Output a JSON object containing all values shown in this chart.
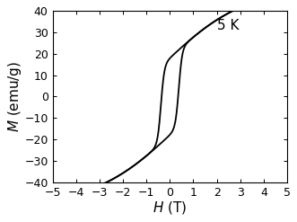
{
  "title": "5 K",
  "xlabel": "H (T)",
  "ylabel": "M (emu/g)",
  "xlim": [
    -5,
    5
  ],
  "ylim": [
    -40,
    40
  ],
  "xticks": [
    -5,
    -4,
    -3,
    -2,
    -1,
    0,
    1,
    2,
    3,
    4,
    5
  ],
  "yticks": [
    -40,
    -30,
    -20,
    -10,
    0,
    10,
    20,
    30,
    40
  ],
  "line_color": "#000000",
  "line_width": 1.3,
  "background_color": "#ffffff",
  "title_fontsize": 11,
  "label_fontsize": 11,
  "tick_fontsize": 9,
  "Ms_langevin": 42.0,
  "langevin_a": 1.4,
  "delta_M": 18.0,
  "Hc": 0.38,
  "switch_sharpness": 7.0
}
